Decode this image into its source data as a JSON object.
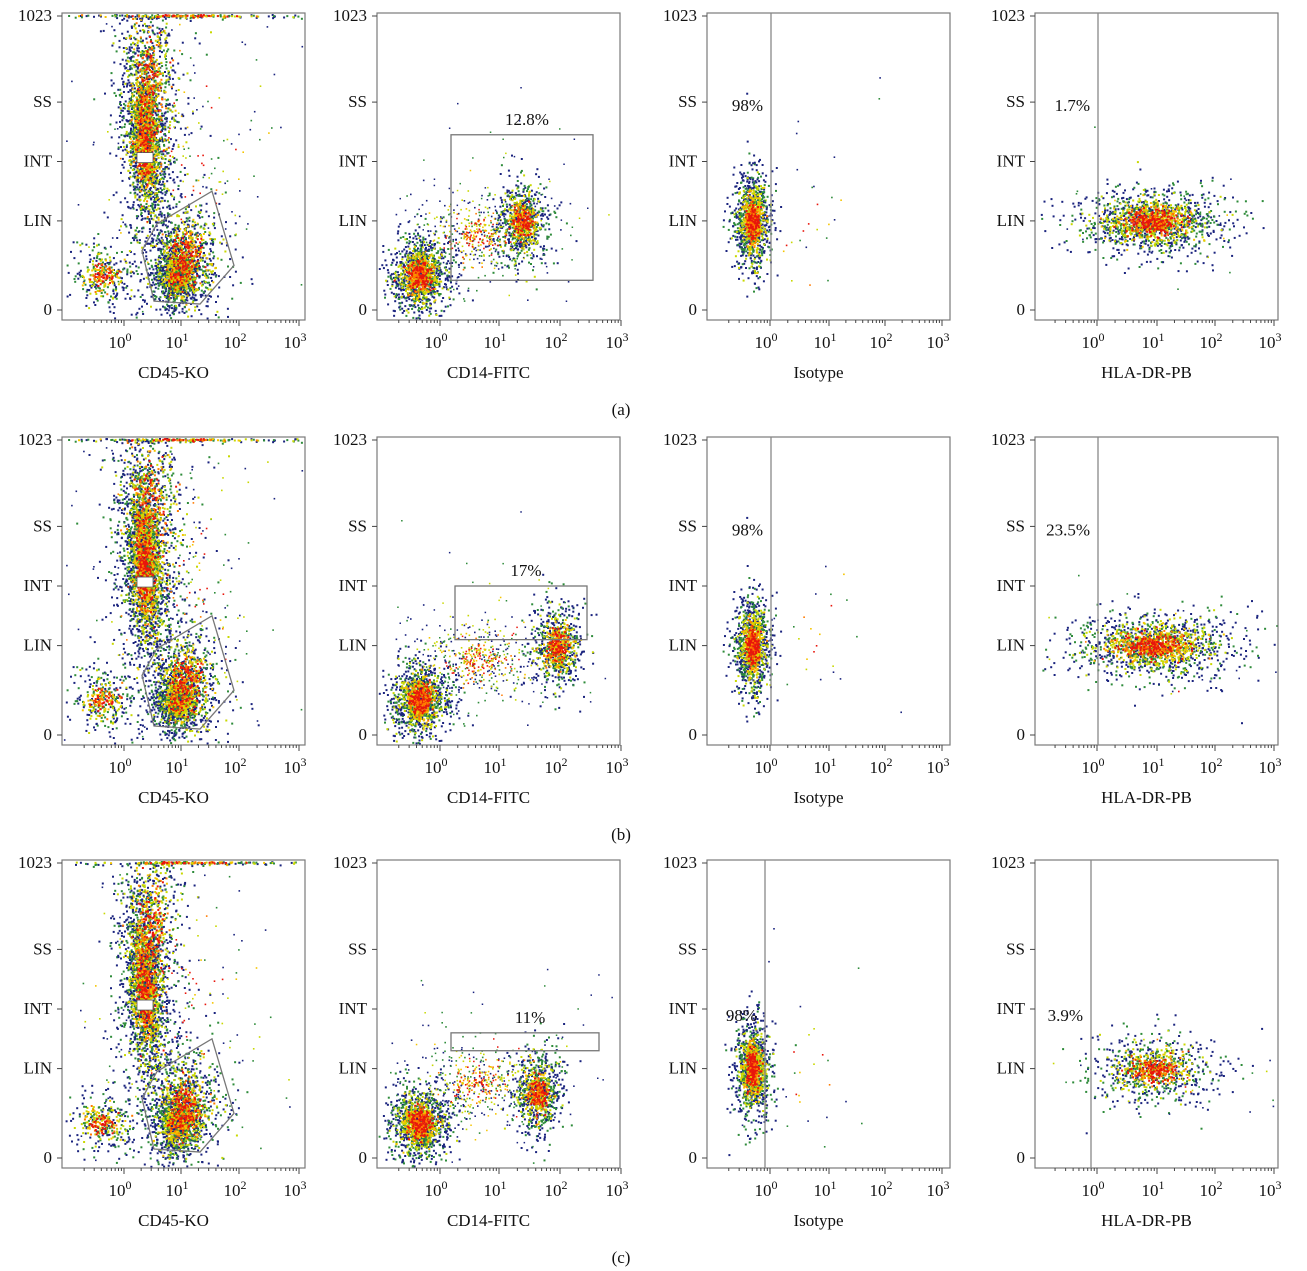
{
  "figure": {
    "y_tick_labels": [
      "0",
      "LIN",
      "INT",
      "SS",
      "1023"
    ],
    "x_decades": [
      0,
      1,
      2,
      3
    ],
    "rows": [
      {
        "label": "(a)",
        "panels": [
          {
            "xlabel": "CD45-KO",
            "gate": "cd45"
          },
          {
            "xlabel": "CD14-FITC",
            "gate_label": "12.8%"
          },
          {
            "xlabel": "Isotype",
            "quadrant_label": "98%"
          },
          {
            "xlabel": "HLA-DR-PB",
            "quadrant_label": "1.7%"
          }
        ]
      },
      {
        "label": "(b)",
        "panels": [
          {
            "xlabel": "CD45-KO",
            "gate": "cd45"
          },
          {
            "xlabel": "CD14-FITC",
            "gate_label": "17%"
          },
          {
            "xlabel": "Isotype",
            "quadrant_label": "98%"
          },
          {
            "xlabel": "HLA-DR-PB",
            "quadrant_label": "23.5%"
          }
        ]
      },
      {
        "label": "(c)",
        "panels": [
          {
            "xlabel": "CD45-KO",
            "gate": "cd45"
          },
          {
            "xlabel": "CD14-FITC",
            "gate_label": "11%"
          },
          {
            "xlabel": "Isotype",
            "quadrant_label": "98%"
          },
          {
            "xlabel": "HLA-DR-PB",
            "quadrant_label": "3.9%"
          }
        ]
      }
    ]
  },
  "chart_data": {
    "type": "scatter",
    "description_type": "flow cytometry density dot plots",
    "x_scale": "log",
    "x_tick_labels": [
      "10^0",
      "10^1",
      "10^2",
      "10^3"
    ],
    "y_tick_labels": [
      "0",
      "LIN",
      "INT",
      "SS",
      "1023"
    ],
    "grid": false,
    "colors": {
      "low": "#1a237e",
      "mid_low": "#2e8b3a",
      "mid": "#c8d800",
      "mid_high": "#f5c400",
      "high": "#e8160c"
    },
    "gate_percentages": {
      "a": {
        "CD14-FITC": "12.8%",
        "Isotype": "98%",
        "HLA-DR-PB": "1.7%"
      },
      "b": {
        "CD14-FITC": "17%",
        "Isotype": "98%",
        "HLA-DR-PB": "23.5%"
      },
      "c": {
        "CD14-FITC": "11%",
        "Isotype": "98%",
        "HLA-DR-PB": "3.9%"
      }
    }
  }
}
